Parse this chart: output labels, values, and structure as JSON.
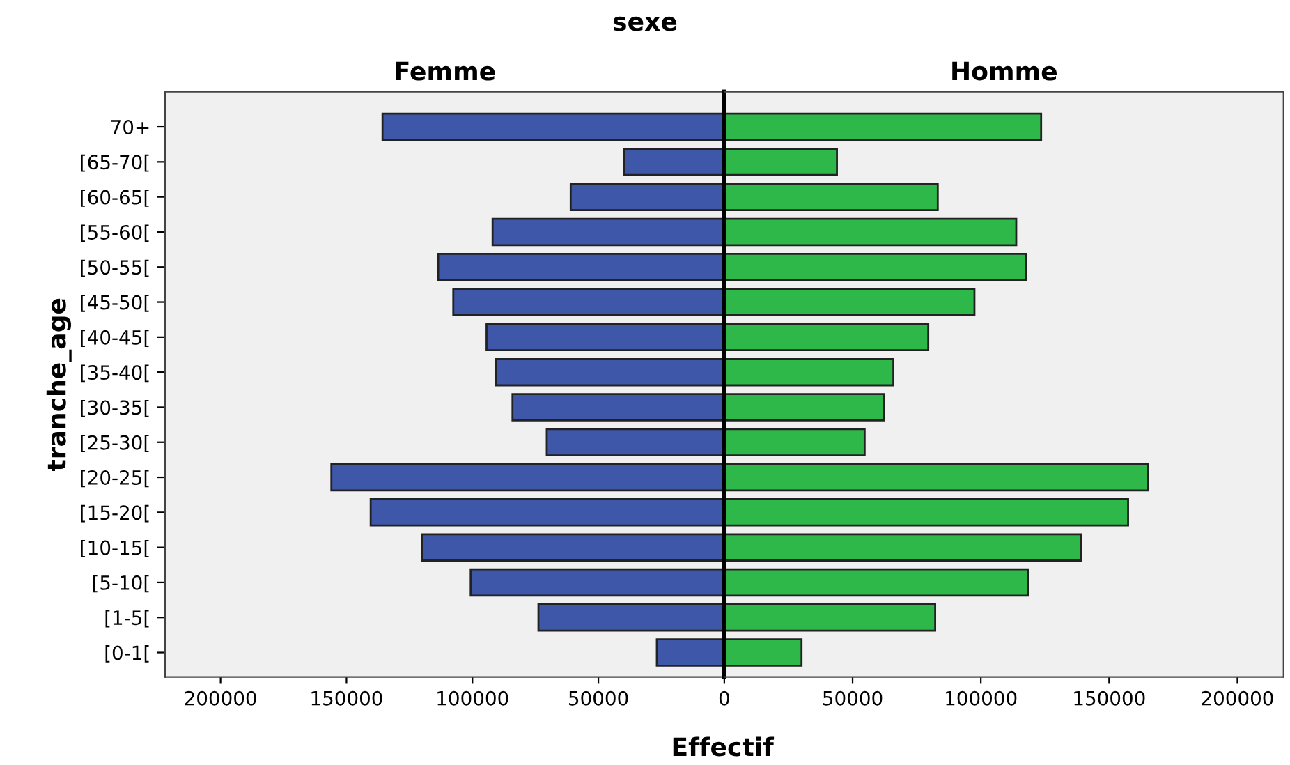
{
  "chart_data": [
    {
      "type": "bar",
      "orientation": "horizontal",
      "title": "sexe",
      "subtitle": "Femme",
      "xlabel": "Effectif",
      "ylabel": "tranche_age",
      "categories": [
        "70+",
        "[65-70[",
        "[60-65[",
        "[55-60[",
        "[50-55[",
        "[45-50[",
        "[40-45[",
        "[35-40[",
        "[30-35[",
        "[25-30[",
        "[20-25[",
        "[15-20[",
        "[10-15[",
        "[5-10[",
        "[1-5[",
        "[0-1["
      ],
      "values": [
        135700,
        39700,
        61000,
        92000,
        113600,
        107600,
        94400,
        90600,
        84100,
        70500,
        156000,
        140400,
        120000,
        100700,
        73800,
        26800
      ],
      "color": "#3f57a8",
      "xlim": [
        222000,
        0
      ],
      "xticks": [
        200000,
        150000,
        100000,
        50000
      ],
      "grid": false
    },
    {
      "type": "bar",
      "orientation": "horizontal",
      "subtitle": "Homme",
      "categories": [
        null,
        null,
        null,
        null,
        null,
        null,
        null,
        null,
        null,
        null,
        null,
        null,
        null,
        null,
        null,
        null
      ],
      "values": [
        123500,
        43900,
        83200,
        113800,
        117600,
        97500,
        79500,
        65900,
        62300,
        54700,
        165100,
        157400,
        139000,
        118500,
        82200,
        30100
      ],
      "color": "#2eb84a",
      "xlim": [
        0,
        218000
      ],
      "xticks": [
        0,
        50000,
        100000,
        150000,
        200000
      ],
      "grid": false,
      "tick_labels": "x"
    }
  ]
}
